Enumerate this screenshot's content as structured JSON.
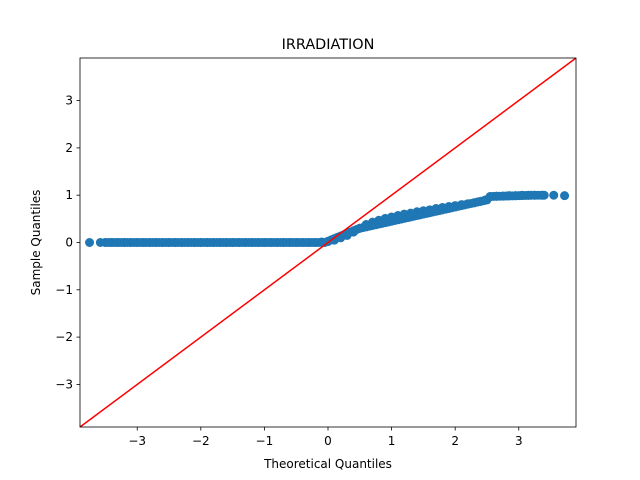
{
  "chart_data": {
    "type": "scatter",
    "title": "IRRADIATION",
    "xlabel": "Theoretical Quantiles",
    "ylabel": "Sample Quantiles",
    "xlim": [
      -3.9,
      3.9
    ],
    "ylim": [
      -3.9,
      3.9
    ],
    "xticks": [
      -3,
      -2,
      -1,
      0,
      1,
      2,
      3
    ],
    "xtick_labels": [
      "−3",
      "−2",
      "−1",
      "0",
      "1",
      "2",
      "3"
    ],
    "yticks": [
      -3,
      -2,
      -1,
      0,
      1,
      2,
      3
    ],
    "ytick_labels": [
      "−3",
      "−2",
      "−1",
      "0",
      "1",
      "2",
      "3"
    ],
    "grid": false,
    "marker_color": "#1f77b4",
    "reference_line": {
      "slope": 1,
      "intercept": 0,
      "color": "#ff0000"
    },
    "points": [
      [
        -3.75,
        0.0
      ],
      [
        -3.58,
        0.0
      ],
      [
        -3.5,
        0.0
      ],
      [
        -3.4,
        0.0
      ],
      [
        -3.3,
        0.0
      ],
      [
        -3.2,
        0.0
      ],
      [
        -3.1,
        0.0
      ],
      [
        -3.0,
        0.0
      ],
      [
        -2.9,
        0.0
      ],
      [
        -2.8,
        0.0
      ],
      [
        -2.7,
        0.0
      ],
      [
        -2.6,
        0.0
      ],
      [
        -2.5,
        0.0
      ],
      [
        -2.4,
        0.0
      ],
      [
        -2.3,
        0.0
      ],
      [
        -2.2,
        0.0
      ],
      [
        -2.1,
        0.0
      ],
      [
        -2.0,
        0.0
      ],
      [
        -1.9,
        0.0
      ],
      [
        -1.8,
        0.0
      ],
      [
        -1.7,
        0.0
      ],
      [
        -1.6,
        0.0
      ],
      [
        -1.5,
        0.0
      ],
      [
        -1.4,
        0.0
      ],
      [
        -1.3,
        0.0
      ],
      [
        -1.2,
        0.0
      ],
      [
        -1.1,
        0.0
      ],
      [
        -1.0,
        0.0
      ],
      [
        -0.9,
        0.0
      ],
      [
        -0.8,
        0.0
      ],
      [
        -0.7,
        0.0
      ],
      [
        -0.6,
        0.0
      ],
      [
        -0.5,
        0.0
      ],
      [
        -0.4,
        0.0
      ],
      [
        -0.3,
        0.0
      ],
      [
        -0.2,
        0.0
      ],
      [
        -0.1,
        0.01
      ],
      [
        0.0,
        0.02
      ],
      [
        0.1,
        0.05
      ],
      [
        0.2,
        0.1
      ],
      [
        0.3,
        0.15
      ],
      [
        0.4,
        0.22
      ],
      [
        0.5,
        0.3
      ],
      [
        0.6,
        0.38
      ],
      [
        0.7,
        0.43
      ],
      [
        0.8,
        0.47
      ],
      [
        0.9,
        0.51
      ],
      [
        1.0,
        0.54
      ],
      [
        1.1,
        0.57
      ],
      [
        1.2,
        0.6
      ],
      [
        1.3,
        0.62
      ],
      [
        1.4,
        0.65
      ],
      [
        1.5,
        0.67
      ],
      [
        1.6,
        0.69
      ],
      [
        1.7,
        0.72
      ],
      [
        1.8,
        0.74
      ],
      [
        1.9,
        0.76
      ],
      [
        2.0,
        0.78
      ],
      [
        2.1,
        0.8
      ],
      [
        2.2,
        0.82
      ],
      [
        2.3,
        0.84
      ],
      [
        2.4,
        0.87
      ],
      [
        2.48,
        0.9
      ],
      [
        2.55,
        0.97
      ],
      [
        2.65,
        0.98
      ],
      [
        2.75,
        0.98
      ],
      [
        2.85,
        0.99
      ],
      [
        2.95,
        0.99
      ],
      [
        3.05,
        1.0
      ],
      [
        3.15,
        1.0
      ],
      [
        3.25,
        1.0
      ],
      [
        3.38,
        1.0
      ],
      [
        3.55,
        1.0
      ],
      [
        3.72,
        0.99
      ]
    ]
  }
}
